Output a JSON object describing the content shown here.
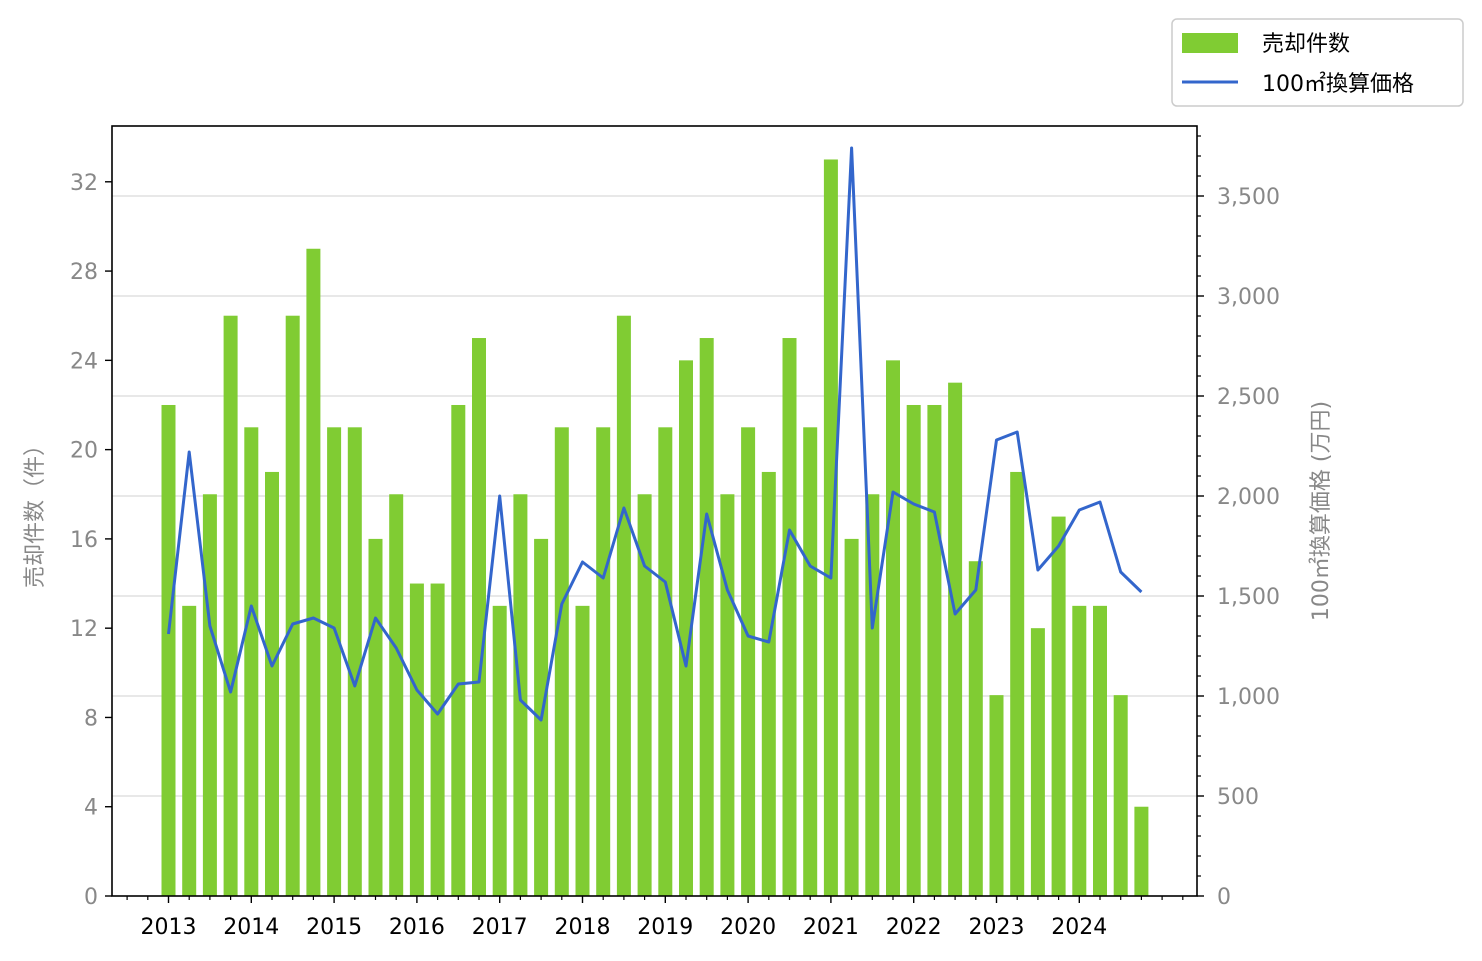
{
  "chart_data": {
    "type": "bar",
    "x": [
      "2013 Q1",
      "2013 Q2",
      "2013 Q3",
      "2013 Q4",
      "2014 Q1",
      "2014 Q2",
      "2014 Q3",
      "2014 Q4",
      "2015 Q1",
      "2015 Q2",
      "2015 Q3",
      "2015 Q4",
      "2016 Q1",
      "2016 Q2",
      "2016 Q3",
      "2016 Q4",
      "2017 Q1",
      "2017 Q2",
      "2017 Q3",
      "2017 Q4",
      "2018 Q1",
      "2018 Q2",
      "2018 Q3",
      "2018 Q4",
      "2019 Q1",
      "2019 Q2",
      "2019 Q3",
      "2019 Q4",
      "2020 Q1",
      "2020 Q2",
      "2020 Q3",
      "2020 Q4",
      "2021 Q1",
      "2021 Q2",
      "2021 Q3",
      "2021 Q4",
      "2022 Q1",
      "2022 Q2",
      "2022 Q3",
      "2022 Q4",
      "2023 Q1",
      "2023 Q2",
      "2023 Q3",
      "2023 Q4",
      "2024 Q1",
      "2024 Q2",
      "2024 Q3",
      "2024 Q4"
    ],
    "xticks": [
      "2013",
      "2014",
      "2015",
      "2016",
      "2017",
      "2018",
      "2019",
      "2020",
      "2021",
      "2022",
      "2023",
      "2024"
    ],
    "series": [
      {
        "name": "売却件数",
        "type": "bar",
        "axis": "left",
        "color": "#80cc33",
        "values": [
          22,
          13,
          18,
          26,
          21,
          19,
          26,
          29,
          21,
          21,
          16,
          18,
          14,
          14,
          22,
          25,
          13,
          18,
          16,
          21,
          13,
          21,
          26,
          18,
          21,
          24,
          25,
          18,
          21,
          19,
          25,
          21,
          33,
          16,
          18,
          24,
          22,
          22,
          23,
          15,
          9,
          19,
          12,
          17,
          13,
          13,
          9,
          4
        ]
      },
      {
        "name": "100㎡換算価格",
        "type": "line",
        "axis": "right",
        "color": "#3366cc",
        "values": [
          1310,
          2220,
          1350,
          1020,
          1450,
          1150,
          1360,
          1390,
          1340,
          1050,
          1390,
          1240,
          1030,
          910,
          1060,
          1070,
          2000,
          980,
          880,
          1460,
          1670,
          1590,
          1940,
          1650,
          1570,
          1150,
          1910,
          1530,
          1300,
          1270,
          1830,
          1650,
          1590,
          3740,
          1340,
          2020,
          1960,
          1920,
          1410,
          1530,
          2280,
          2320,
          1630,
          1750,
          1930,
          1970,
          1620,
          1520
        ]
      }
    ],
    "ylabel": "売却件数（件）",
    "ylabel_right": "100㎡換算価格 (万円)",
    "ylim": [
      0,
      34.5
    ],
    "ylim_right": [
      0,
      3850
    ],
    "yticks": [
      0,
      4,
      8,
      12,
      16,
      20,
      24,
      28,
      32
    ],
    "yticks_right": [
      0,
      500,
      1000,
      1500,
      2000,
      2500,
      3000,
      3500
    ],
    "yticks_right_labels": [
      "0",
      "500",
      "1,000",
      "1,500",
      "2,000",
      "2,500",
      "3,000",
      "3,500"
    ],
    "grid": "horizontal, right axis",
    "legend": "top-right"
  }
}
